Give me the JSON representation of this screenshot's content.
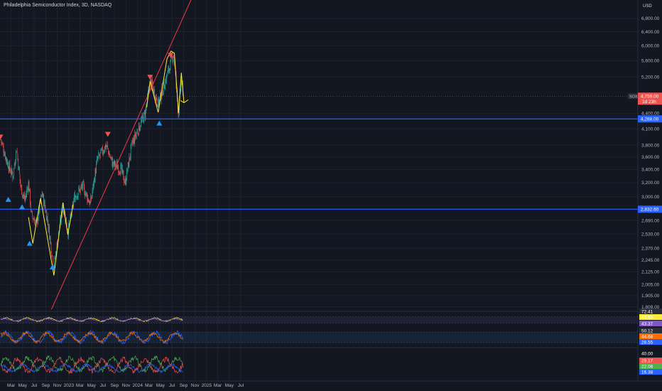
{
  "header": {
    "title": "Philadelphia Semiconductor Index, 3D, NASDAQ",
    "currency": "USD"
  },
  "colors": {
    "background": "#131722",
    "up": "#26a69a",
    "down": "#ef5350",
    "trendline": "#f23645",
    "support": "#2962ff",
    "pattern": "#ffeb3b",
    "buy_marker": "#2196f3",
    "sell_marker": "#ef5350"
  },
  "chart_data": {
    "type": "candlestick",
    "title": "Philadelphia Semiconductor Index, 3D, NASDAQ",
    "y_scale": "log",
    "ylim": [
      1790,
      7400
    ],
    "y_ticks": [
      1809,
      1905,
      2005,
      2125,
      2245,
      2370,
      2530,
      2690,
      3000,
      3200,
      3400,
      3600,
      3800,
      4100,
      4400,
      5200,
      5600,
      6000,
      6400,
      6800
    ],
    "y_tick_labels": [
      "1,809.00",
      "1,905.00",
      "2,005.00",
      "2,125.00",
      "2,245.00",
      "2,370.00",
      "2,530.00",
      "2,690.00",
      "3,000.00",
      "3,200.00",
      "3,400.00",
      "3,600.00",
      "3,800.00",
      "4,100.00",
      "4,400.00",
      "5,200.00",
      "5,600.00",
      "6,000.00",
      "6,400.00",
      "6,800.00"
    ],
    "x_ticks": [
      {
        "date": "2022-03-01",
        "label": "Mar"
      },
      {
        "date": "2022-05-01",
        "label": "May"
      },
      {
        "date": "2022-07-01",
        "label": "Jul"
      },
      {
        "date": "2022-09-01",
        "label": "Sep"
      },
      {
        "date": "2022-11-01",
        "label": "Nov"
      },
      {
        "date": "2023-01-01",
        "label": "2023"
      },
      {
        "date": "2023-03-01",
        "label": "Mar"
      },
      {
        "date": "2023-05-01",
        "label": "May"
      },
      {
        "date": "2023-07-01",
        "label": "Jul"
      },
      {
        "date": "2023-09-01",
        "label": "Sep"
      },
      {
        "date": "2023-11-01",
        "label": "Nov"
      },
      {
        "date": "2024-01-01",
        "label": "2024"
      },
      {
        "date": "2024-03-01",
        "label": "Mar"
      },
      {
        "date": "2024-05-01",
        "label": "May"
      },
      {
        "date": "2024-07-01",
        "label": "Jul"
      },
      {
        "date": "2024-09-01",
        "label": "Sep"
      },
      {
        "date": "2024-11-01",
        "label": "Nov"
      },
      {
        "date": "2025-01-01",
        "label": "2025"
      },
      {
        "date": "2025-03-01",
        "label": "Mar"
      },
      {
        "date": "2025-05-01",
        "label": "May"
      },
      {
        "date": "2025-07-01",
        "label": "Jul"
      }
    ],
    "series_path": [
      {
        "date": "2022-01-05",
        "value": 3900
      },
      {
        "date": "2022-02-10",
        "value": 3500
      },
      {
        "date": "2022-03-10",
        "value": 3300
      },
      {
        "date": "2022-03-30",
        "value": 3750
      },
      {
        "date": "2022-04-20",
        "value": 3150
      },
      {
        "date": "2022-05-12",
        "value": 2950
      },
      {
        "date": "2022-06-02",
        "value": 3200
      },
      {
        "date": "2022-06-16",
        "value": 2760
      },
      {
        "date": "2022-07-15",
        "value": 2650
      },
      {
        "date": "2022-08-12",
        "value": 3050
      },
      {
        "date": "2022-09-10",
        "value": 2700
      },
      {
        "date": "2022-10-13",
        "value": 2170
      },
      {
        "date": "2022-11-05",
        "value": 2500
      },
      {
        "date": "2022-12-01",
        "value": 2880
      },
      {
        "date": "2022-12-28",
        "value": 2560
      },
      {
        "date": "2023-02-01",
        "value": 3000
      },
      {
        "date": "2023-03-15",
        "value": 3150
      },
      {
        "date": "2023-04-25",
        "value": 2900
      },
      {
        "date": "2023-06-01",
        "value": 3550
      },
      {
        "date": "2023-07-18",
        "value": 3800
      },
      {
        "date": "2023-08-20",
        "value": 3500
      },
      {
        "date": "2023-10-05",
        "value": 3400
      },
      {
        "date": "2023-10-27",
        "value": 3200
      },
      {
        "date": "2023-12-01",
        "value": 3800
      },
      {
        "date": "2024-01-05",
        "value": 4100
      },
      {
        "date": "2024-02-10",
        "value": 4400
      },
      {
        "date": "2024-03-08",
        "value": 5100
      },
      {
        "date": "2024-04-19",
        "value": 4600
      },
      {
        "date": "2024-05-20",
        "value": 5000
      },
      {
        "date": "2024-07-10",
        "value": 5800
      },
      {
        "date": "2024-08-05",
        "value": 4350
      },
      {
        "date": "2024-08-20",
        "value": 5150
      },
      {
        "date": "2024-08-30",
        "value": 4759
      }
    ],
    "trendline": {
      "start": {
        "date": "2022-10-01",
        "value": 1790
      },
      "end": {
        "date": "2024-10-10",
        "value": 7400
      }
    },
    "horizontal_levels": [
      {
        "value": 4288,
        "label": "4,288.00"
      },
      {
        "value": 2832.6,
        "label": "2,832.60"
      }
    ],
    "pattern_lines": [
      [
        {
          "date": "2022-06-01",
          "value": 2730
        },
        {
          "date": "2022-06-24",
          "value": 2420
        },
        {
          "date": "2022-08-04",
          "value": 2980
        },
        {
          "date": "2022-10-14",
          "value": 2090
        },
        {
          "date": "2022-12-01",
          "value": 2920
        },
        {
          "date": "2022-12-27",
          "value": 2520
        },
        {
          "date": "2023-01-23",
          "value": 2890
        }
      ],
      [
        {
          "date": "2024-02-18",
          "value": 4520
        },
        {
          "date": "2024-03-07",
          "value": 5100
        },
        {
          "date": "2024-04-19",
          "value": 4420
        },
        {
          "date": "2024-06-05",
          "value": 5650
        },
        {
          "date": "2024-06-26",
          "value": 5850
        },
        {
          "date": "2024-07-14",
          "value": 5800
        },
        {
          "date": "2024-08-05",
          "value": 4400
        },
        {
          "date": "2024-08-20",
          "value": 5300
        },
        {
          "date": "2024-09-03",
          "value": 4620
        }
      ]
    ],
    "markers": [
      {
        "date": "2022-01-03",
        "value": 3950,
        "kind": "sell"
      },
      {
        "date": "2022-02-14",
        "value": 2960,
        "kind": "buy"
      },
      {
        "date": "2022-04-28",
        "value": 2860,
        "kind": "buy"
      },
      {
        "date": "2022-06-07",
        "value": 2420,
        "kind": "buy"
      },
      {
        "date": "2022-10-06",
        "value": 2170,
        "kind": "buy"
      },
      {
        "date": "2023-07-27",
        "value": 4000,
        "kind": "sell"
      },
      {
        "date": "2024-03-07",
        "value": 5200,
        "kind": "sell"
      },
      {
        "date": "2024-04-25",
        "value": 4200,
        "kind": "buy"
      },
      {
        "date": "2024-06-24",
        "value": 5750,
        "kind": "sell"
      }
    ],
    "last_price": {
      "symbol": "SOX",
      "value": 4759,
      "label": "4,759.00",
      "countdown": "1d 23h"
    }
  },
  "indicators": {
    "rsi": {
      "labels": [
        "72.41",
        "49.90",
        "43.37"
      ],
      "ylim": [
        10,
        90
      ]
    },
    "stoch": {
      "labels": [
        "50.12",
        "44.68",
        "28.55"
      ],
      "ylim": [
        0,
        100
      ]
    },
    "dmi": {
      "labels": [
        "40.00",
        "29.17",
        "22.08",
        "16.38"
      ],
      "ylim": [
        5,
        45
      ]
    }
  }
}
